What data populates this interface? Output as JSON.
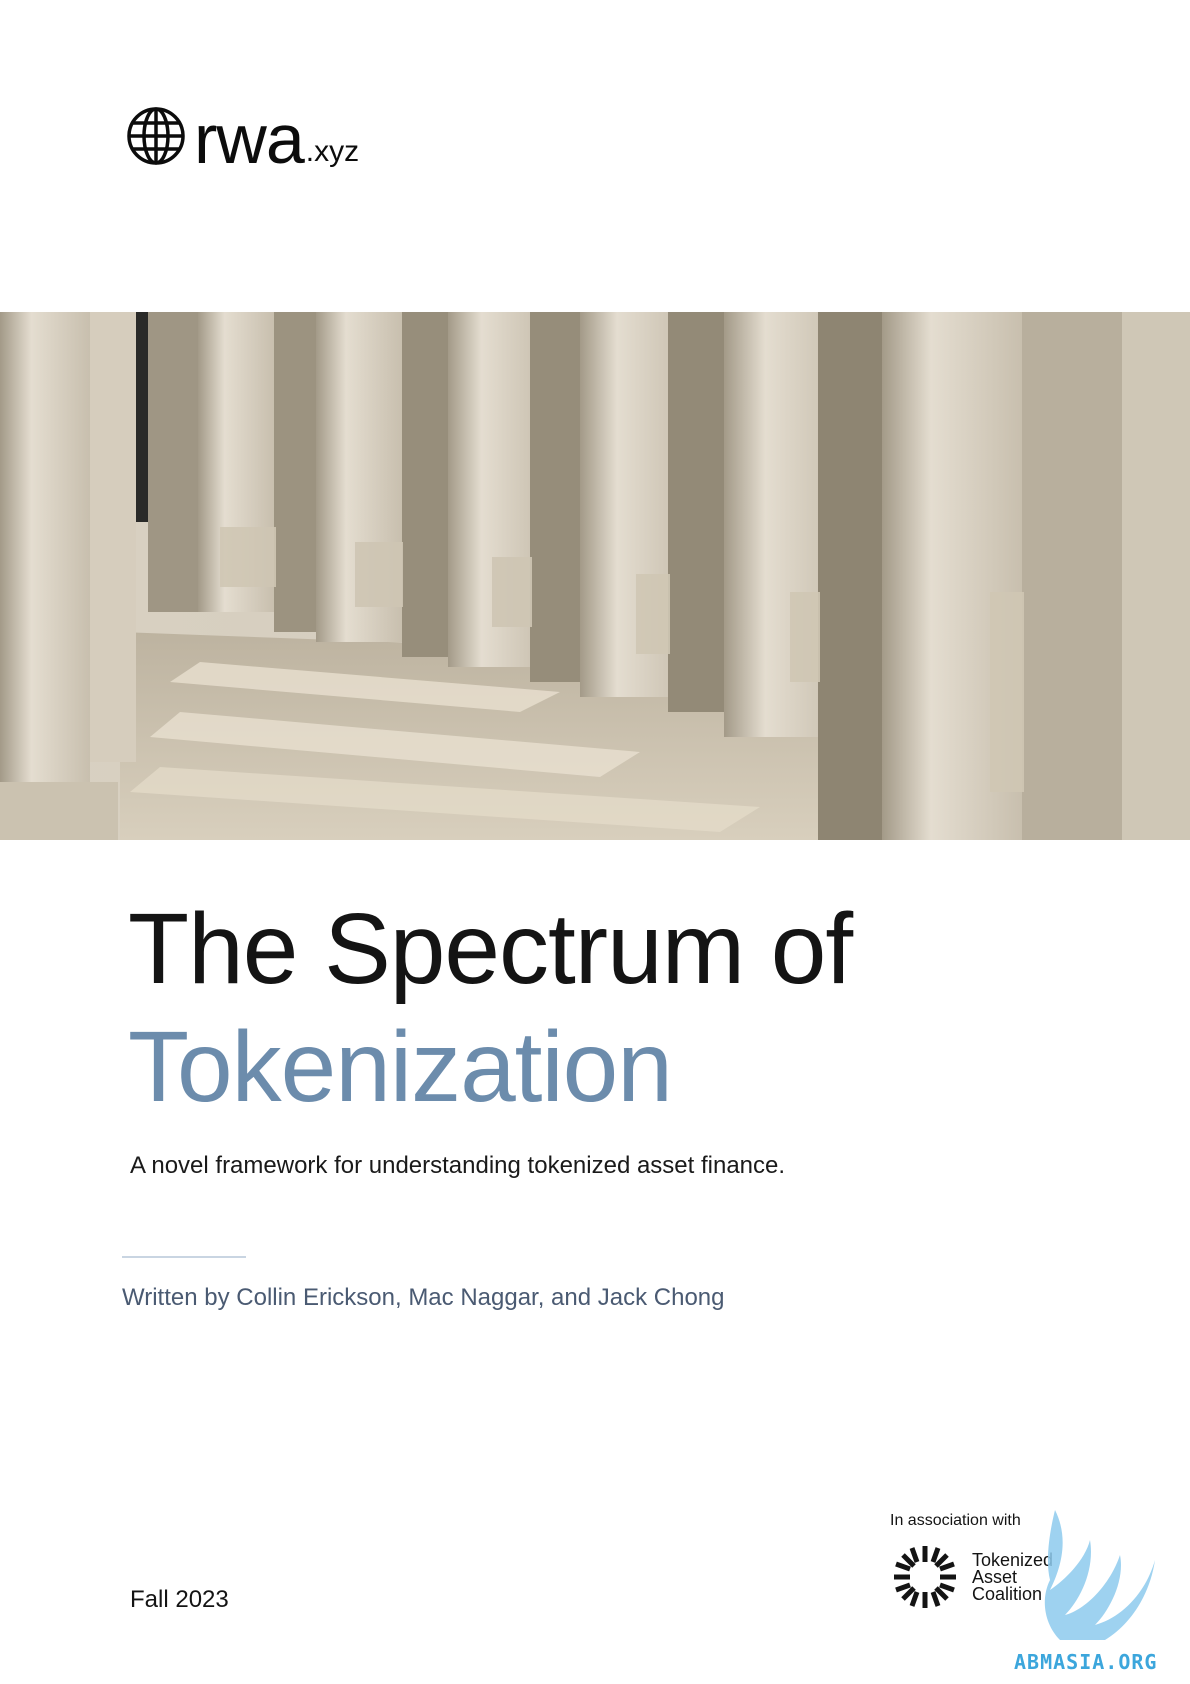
{
  "brand": {
    "name": "rwa",
    "tld": ".xyz",
    "icon": "globe-icon"
  },
  "title": {
    "line1": "The Spectrum of",
    "line2": "Tokenization"
  },
  "subtitle": "A novel framework for understanding tokenized asset finance.",
  "authors": "Written by Collin Erickson, Mac Naggar, and Jack Chong",
  "date": "Fall 2023",
  "association": {
    "label": "In association with",
    "org_lines": [
      "Tokenized",
      "Asset",
      "Coalition"
    ],
    "icon": "tac-burst-logo"
  },
  "watermark": {
    "text": "ABMASIA.ORG",
    "icon": "griffin-watermark"
  },
  "colors": {
    "accent": "#6c8cac",
    "text": "#141414",
    "authors": "#4a5a72",
    "watermark": "#3ca6dc"
  }
}
